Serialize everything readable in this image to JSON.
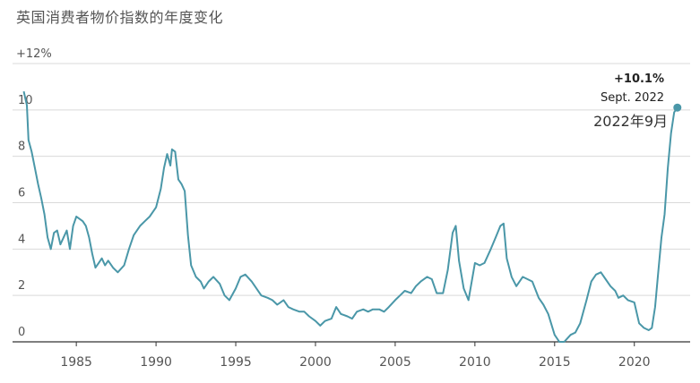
{
  "chart_data": {
    "type": "line",
    "title": "英国消费者物价指数的年度变化",
    "ylim": [
      0,
      12
    ],
    "xlim": [
      1981.0,
      2023.5
    ],
    "y_ticks": [
      {
        "value": 12,
        "label": "+12%"
      },
      {
        "value": 10,
        "label": "10"
      },
      {
        "value": 8,
        "label": "8"
      },
      {
        "value": 6,
        "label": "6"
      },
      {
        "value": 4,
        "label": "4"
      },
      {
        "value": 2,
        "label": "2"
      },
      {
        "value": 0,
        "label": "0"
      }
    ],
    "x_ticks": [
      {
        "value": 1985,
        "label": "1985"
      },
      {
        "value": 1990,
        "label": "1990"
      },
      {
        "value": 1995,
        "label": "1995"
      },
      {
        "value": 2000,
        "label": "2000"
      },
      {
        "value": 2005,
        "label": "2005"
      },
      {
        "value": 2010,
        "label": "2010"
      },
      {
        "value": 2015,
        "label": "2015"
      },
      {
        "value": 2020,
        "label": "2020"
      }
    ],
    "grid": true,
    "series": [
      {
        "color": "#4a97a8",
        "x": [
          1981.7,
          1981.9,
          1982.0,
          1982.2,
          1982.4,
          1982.6,
          1982.8,
          1983.0,
          1983.2,
          1983.4,
          1983.6,
          1983.8,
          1984.0,
          1984.2,
          1984.4,
          1984.6,
          1984.8,
          1985.0,
          1985.2,
          1985.4,
          1985.6,
          1985.8,
          1986.0,
          1986.2,
          1986.4,
          1986.6,
          1986.8,
          1987.0,
          1987.3,
          1987.6,
          1988.0,
          1988.3,
          1988.6,
          1989.0,
          1989.3,
          1989.6,
          1990.0,
          1990.3,
          1990.5,
          1990.7,
          1990.9,
          1991.0,
          1991.2,
          1991.4,
          1991.6,
          1991.8,
          1992.0,
          1992.2,
          1992.5,
          1992.8,
          1993.0,
          1993.3,
          1993.6,
          1994.0,
          1994.3,
          1994.6,
          1995.0,
          1995.3,
          1995.6,
          1996.0,
          1996.3,
          1996.6,
          1997.0,
          1997.3,
          1997.6,
          1998.0,
          1998.3,
          1998.6,
          1999.0,
          1999.3,
          1999.6,
          2000.0,
          2000.3,
          2000.6,
          2001.0,
          2001.3,
          2001.6,
          2002.0,
          2002.3,
          2002.6,
          2003.0,
          2003.3,
          2003.6,
          2004.0,
          2004.3,
          2004.6,
          2005.0,
          2005.3,
          2005.6,
          2006.0,
          2006.3,
          2006.6,
          2007.0,
          2007.3,
          2007.6,
          2008.0,
          2008.3,
          2008.6,
          2008.8,
          2009.0,
          2009.3,
          2009.6,
          2010.0,
          2010.3,
          2010.6,
          2011.0,
          2011.3,
          2011.6,
          2011.8,
          2012.0,
          2012.3,
          2012.6,
          2013.0,
          2013.3,
          2013.6,
          2014.0,
          2014.3,
          2014.6,
          2015.0,
          2015.3,
          2015.6,
          2016.0,
          2016.3,
          2016.6,
          2017.0,
          2017.3,
          2017.6,
          2017.9,
          2018.2,
          2018.5,
          2018.8,
          2019.0,
          2019.3,
          2019.6,
          2020.0,
          2020.3,
          2020.6,
          2020.9,
          2021.1,
          2021.3,
          2021.5,
          2021.7,
          2021.9,
          2022.1,
          2022.3,
          2022.5,
          2022.7
        ],
        "values": [
          10.8,
          10.2,
          8.7,
          8.2,
          7.5,
          6.8,
          6.2,
          5.5,
          4.5,
          4.0,
          4.7,
          4.8,
          4.2,
          4.5,
          4.8,
          4.0,
          5.0,
          5.4,
          5.3,
          5.2,
          5.0,
          4.5,
          3.8,
          3.2,
          3.4,
          3.6,
          3.3,
          3.5,
          3.2,
          3.0,
          3.3,
          4.0,
          4.6,
          5.0,
          5.2,
          5.4,
          5.8,
          6.6,
          7.5,
          8.1,
          7.6,
          8.3,
          8.2,
          7.0,
          6.8,
          6.5,
          4.6,
          3.3,
          2.8,
          2.6,
          2.3,
          2.6,
          2.8,
          2.5,
          2.0,
          1.8,
          2.3,
          2.8,
          2.9,
          2.6,
          2.3,
          2.0,
          1.9,
          1.8,
          1.6,
          1.8,
          1.5,
          1.4,
          1.3,
          1.3,
          1.1,
          0.9,
          0.7,
          0.9,
          1.0,
          1.5,
          1.2,
          1.1,
          1.0,
          1.3,
          1.4,
          1.3,
          1.4,
          1.4,
          1.3,
          1.5,
          1.8,
          2.0,
          2.2,
          2.1,
          2.4,
          2.6,
          2.8,
          2.7,
          2.1,
          2.1,
          3.1,
          4.7,
          5.0,
          3.5,
          2.3,
          1.8,
          3.4,
          3.3,
          3.4,
          4.0,
          4.5,
          5.0,
          5.1,
          3.6,
          2.8,
          2.4,
          2.8,
          2.7,
          2.6,
          1.9,
          1.6,
          1.2,
          0.3,
          0.0,
          0.0,
          0.3,
          0.4,
          0.8,
          1.8,
          2.6,
          2.9,
          3.0,
          2.7,
          2.4,
          2.2,
          1.9,
          2.0,
          1.8,
          1.7,
          0.8,
          0.6,
          0.5,
          0.6,
          1.5,
          3.0,
          4.5,
          5.5,
          7.5,
          9.0,
          9.9,
          10.1
        ]
      }
    ],
    "annotations": {
      "value_label": "+10.1%",
      "date_label": "Sept. 2022",
      "cn_label": "2022年9月",
      "point": {
        "x": 2022.7,
        "y": 10.1
      }
    }
  }
}
